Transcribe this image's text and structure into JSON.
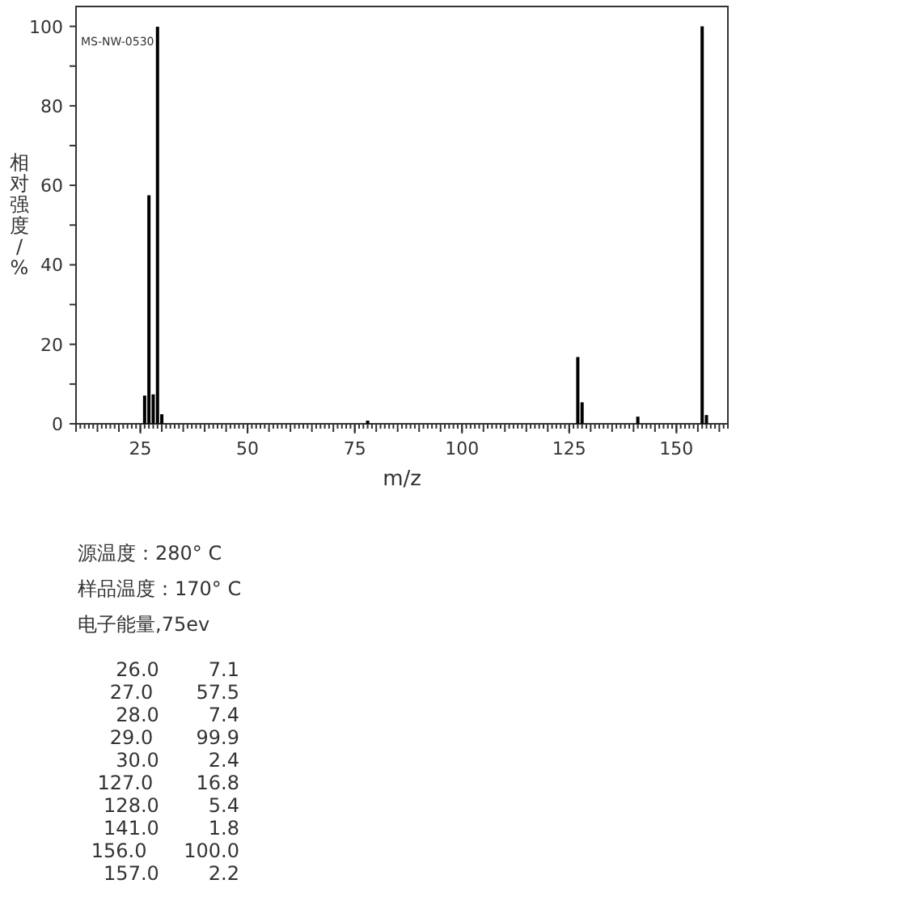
{
  "chart_data": {
    "type": "bar",
    "xlabel": "m/z",
    "ylabel": "相对强度/%",
    "x": [
      26,
      27,
      28,
      29,
      30,
      78,
      127,
      128,
      141,
      156,
      157
    ],
    "values": [
      7.1,
      57.5,
      7.4,
      99.9,
      2.4,
      0.8,
      16.8,
      5.4,
      1.8,
      100.0,
      2.2
    ],
    "color": "#000000",
    "xlim": [
      10,
      162
    ],
    "xticks": [
      25,
      50,
      75,
      100,
      125,
      150
    ],
    "ylim": [
      0,
      105
    ],
    "yticks": [
      0,
      {
        "value": 10,
        "label": null
      },
      20,
      {
        "value": 30,
        "label": null
      },
      40,
      {
        "value": 50,
        "label": null
      },
      60,
      {
        "value": 70,
        "label": null
      },
      80,
      {
        "value": 90,
        "label": null
      },
      100
    ],
    "grid": false,
    "annotations": [
      "MS-NW-0530",
      "源温度：280° C",
      "样品温度：170° C",
      "电子能量,75ev",
      "26.0        7.1",
      "27.0       57.5",
      "28.0        7.4",
      "29.0       99.9",
      "30.0        2.4",
      "127.0       16.8",
      "128.0        5.4",
      "141.0        1.8",
      "156.0      100.0",
      "157.0        2.2"
    ]
  }
}
